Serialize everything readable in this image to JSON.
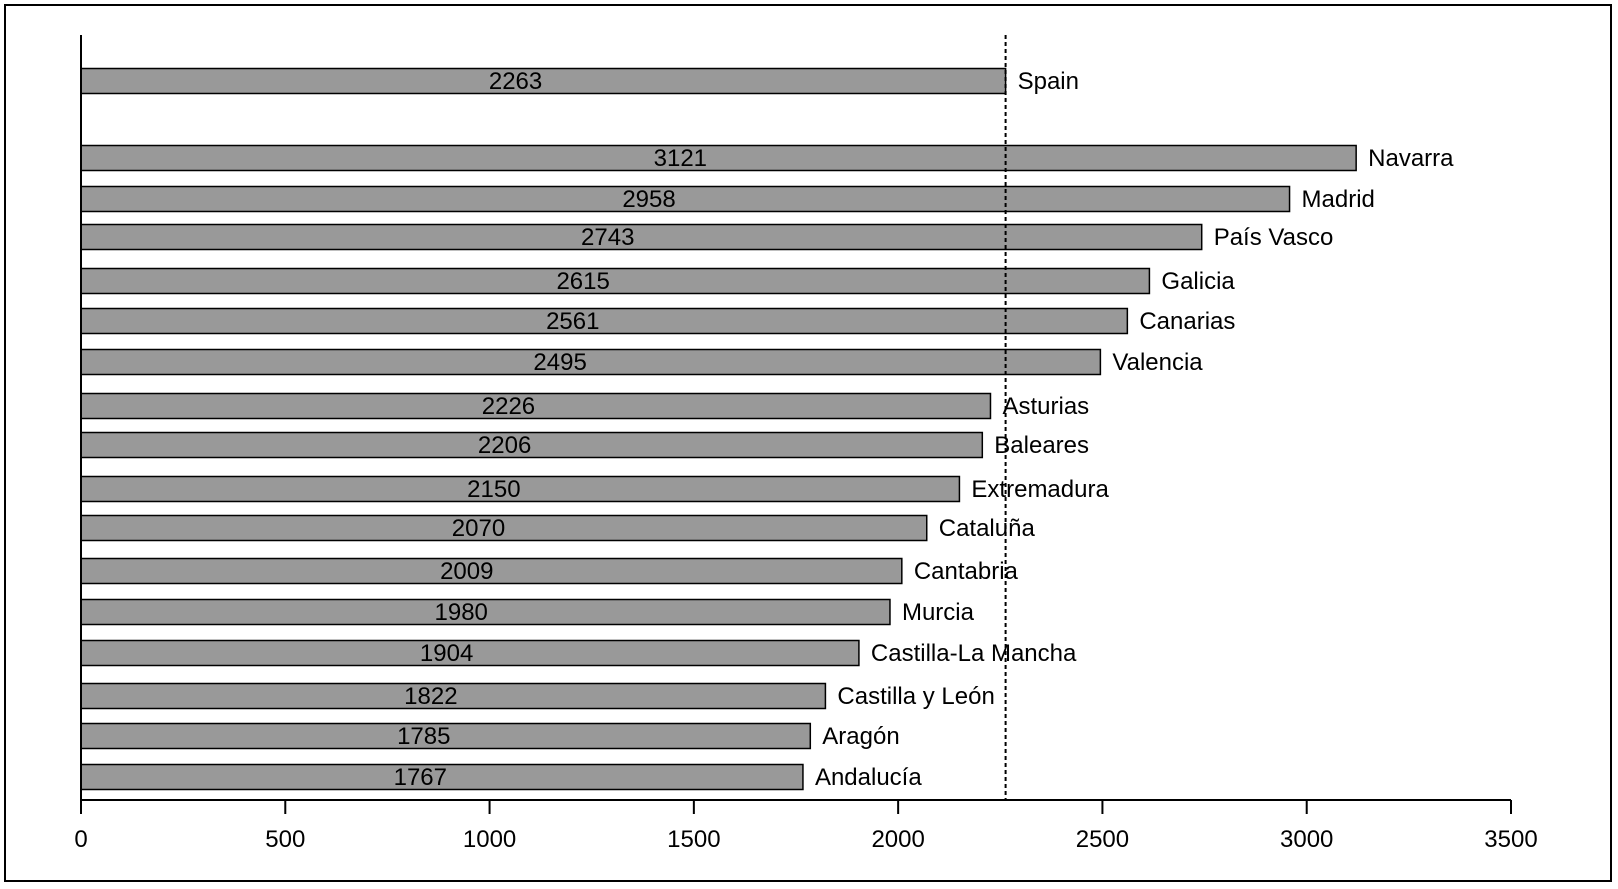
{
  "chart_data": {
    "type": "bar",
    "orientation": "horizontal",
    "categories": [
      "Spain",
      "Navarra",
      "Madrid",
      "País Vasco",
      "Galicia",
      "Canarias",
      "Valencia",
      "Asturias",
      "Baleares",
      "Extremadura",
      "Cataluña",
      "Cantabria",
      "Murcia",
      "Castilla-La Mancha",
      "Castilla y León",
      "Aragón",
      "Andalucía"
    ],
    "values": [
      2263,
      3121,
      2958,
      2743,
      2615,
      2561,
      2495,
      2226,
      2206,
      2150,
      2070,
      2009,
      1980,
      1904,
      1822,
      1785,
      1767
    ],
    "value_labels": [
      "2263",
      "3121",
      "2958",
      "2743",
      "2615",
      "2561",
      "2495",
      "2226",
      "2206",
      "2150",
      "2070",
      "2009",
      "1980",
      "1904",
      "1822",
      "1785",
      "1767"
    ],
    "xlim": [
      0,
      3500
    ],
    "x_ticks": [
      0,
      500,
      1000,
      1500,
      2000,
      2500,
      3000,
      3500
    ],
    "x_tick_labels": [
      "0",
      "500",
      "1000",
      "1500",
      "2000",
      "2500",
      "3000",
      "3500"
    ],
    "reference_line": 2263,
    "bar_color": "#999999",
    "grid": false,
    "legend": "none",
    "title": "",
    "xlabel": "",
    "ylabel": ""
  }
}
